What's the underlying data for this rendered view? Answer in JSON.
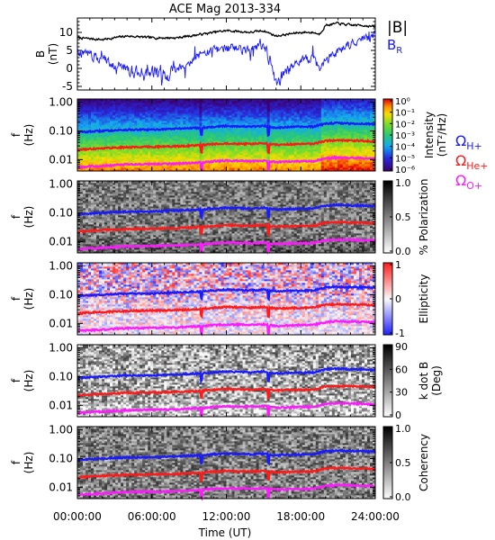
{
  "title": "ACE Mag 2013-334",
  "xlabel": "Time (UT)",
  "x_ticks": [
    "00:00:00",
    "06:00:00",
    "12:00:00",
    "18:00:00",
    "24:00:00"
  ],
  "colors": {
    "B_total": "#000000",
    "B_R": "#1a1aff",
    "H_plus": "#1a1aff",
    "He_plus": "#ff1a1a",
    "O_plus": "#ff19ff"
  },
  "chart_data": [
    {
      "type": "line",
      "panel": "field",
      "ylabel": "B\n(nT)",
      "ylim": [
        -6,
        14
      ],
      "y_ticks": [
        "10",
        "5",
        "0",
        "-5"
      ],
      "x_hours": [
        0,
        2,
        4,
        6,
        8,
        10,
        11,
        12,
        14,
        15,
        16,
        18,
        19,
        19.5,
        20,
        21,
        22,
        23,
        24
      ],
      "series": [
        {
          "name": "|B|",
          "values": [
            8.5,
            8.0,
            9.0,
            8.5,
            8.5,
            9.5,
            10.0,
            10.5,
            10.0,
            10.5,
            9.0,
            10.0,
            10.0,
            9.5,
            12.0,
            12.5,
            12.0,
            12.0,
            11.5
          ]
        },
        {
          "name": "B_R",
          "values": [
            5.0,
            2.5,
            0.0,
            -2.0,
            0.0,
            4.0,
            5.0,
            6.0,
            5.0,
            6.0,
            -3.0,
            2.0,
            3.0,
            0.0,
            2.0,
            5.0,
            7.0,
            8.0,
            9.0
          ]
        }
      ]
    },
    {
      "type": "heatmap",
      "panel": "intensity",
      "ylabel": "f\n(Hz)",
      "colorbar_label": "Intensity\n(nT²/Hz)",
      "colorbar_ticks": [
        "10⁰",
        "10⁻¹",
        "10⁻²",
        "10⁻³",
        "10⁻⁴",
        "10⁻⁵",
        "10⁻⁶"
      ]
    },
    {
      "type": "heatmap",
      "panel": "polarization",
      "ylabel": "f\n(Hz)",
      "colorbar_label": "% Polarization",
      "colorbar_ticks": [
        "1.0",
        "0.5",
        "0.0"
      ]
    },
    {
      "type": "heatmap",
      "panel": "ellipticity",
      "ylabel": "f\n(Hz)",
      "colorbar_label": "Ellipticity",
      "colorbar_ticks": [
        "1",
        "0",
        "-1"
      ]
    },
    {
      "type": "heatmap",
      "panel": "kdotb",
      "ylabel": "f\n(Hz)",
      "colorbar_label": "k dot B\n(Deg)",
      "colorbar_ticks": [
        "90",
        "60",
        "30",
        "0"
      ]
    },
    {
      "type": "heatmap",
      "panel": "coherency",
      "ylabel": "f\n(Hz)",
      "colorbar_label": "Coherency",
      "colorbar_ticks": [
        "1.0",
        "0.5",
        "0.0"
      ]
    }
  ],
  "freq_ticks": [
    "1.00",
    "0.10",
    "0.01"
  ],
  "gyro_lines": [
    {
      "name": "Ω_H+",
      "label_main": "Ω",
      "label_sub": "H+",
      "x_hours": [
        0,
        2,
        4,
        6,
        8,
        10,
        11,
        12,
        14,
        15,
        16,
        18,
        19,
        20,
        21,
        22,
        23,
        24
      ],
      "freq_hz": [
        0.09,
        0.1,
        0.11,
        0.11,
        0.12,
        0.13,
        0.14,
        0.15,
        0.14,
        0.15,
        0.13,
        0.14,
        0.14,
        0.18,
        0.19,
        0.18,
        0.18,
        0.17
      ]
    },
    {
      "name": "Ω_He+",
      "label_main": "Ω",
      "label_sub": "He+",
      "x_hours": [
        0,
        2,
        4,
        6,
        8,
        10,
        11,
        12,
        14,
        15,
        16,
        18,
        19,
        20,
        21,
        22,
        23,
        24
      ],
      "freq_hz": [
        0.022,
        0.025,
        0.027,
        0.028,
        0.029,
        0.032,
        0.035,
        0.037,
        0.035,
        0.037,
        0.033,
        0.035,
        0.035,
        0.045,
        0.047,
        0.046,
        0.045,
        0.043
      ]
    },
    {
      "name": "Ω_O+",
      "label_main": "Ω",
      "label_sub": "O+",
      "x_hours": [
        0,
        2,
        4,
        6,
        8,
        10,
        11,
        12,
        14,
        15,
        16,
        18,
        19,
        20,
        21,
        22,
        23,
        24
      ],
      "freq_hz": [
        0.0055,
        0.006,
        0.0068,
        0.007,
        0.0072,
        0.008,
        0.0087,
        0.0092,
        0.0088,
        0.0092,
        0.0082,
        0.0088,
        0.0088,
        0.011,
        0.0118,
        0.0115,
        0.0112,
        0.0108
      ]
    }
  ]
}
